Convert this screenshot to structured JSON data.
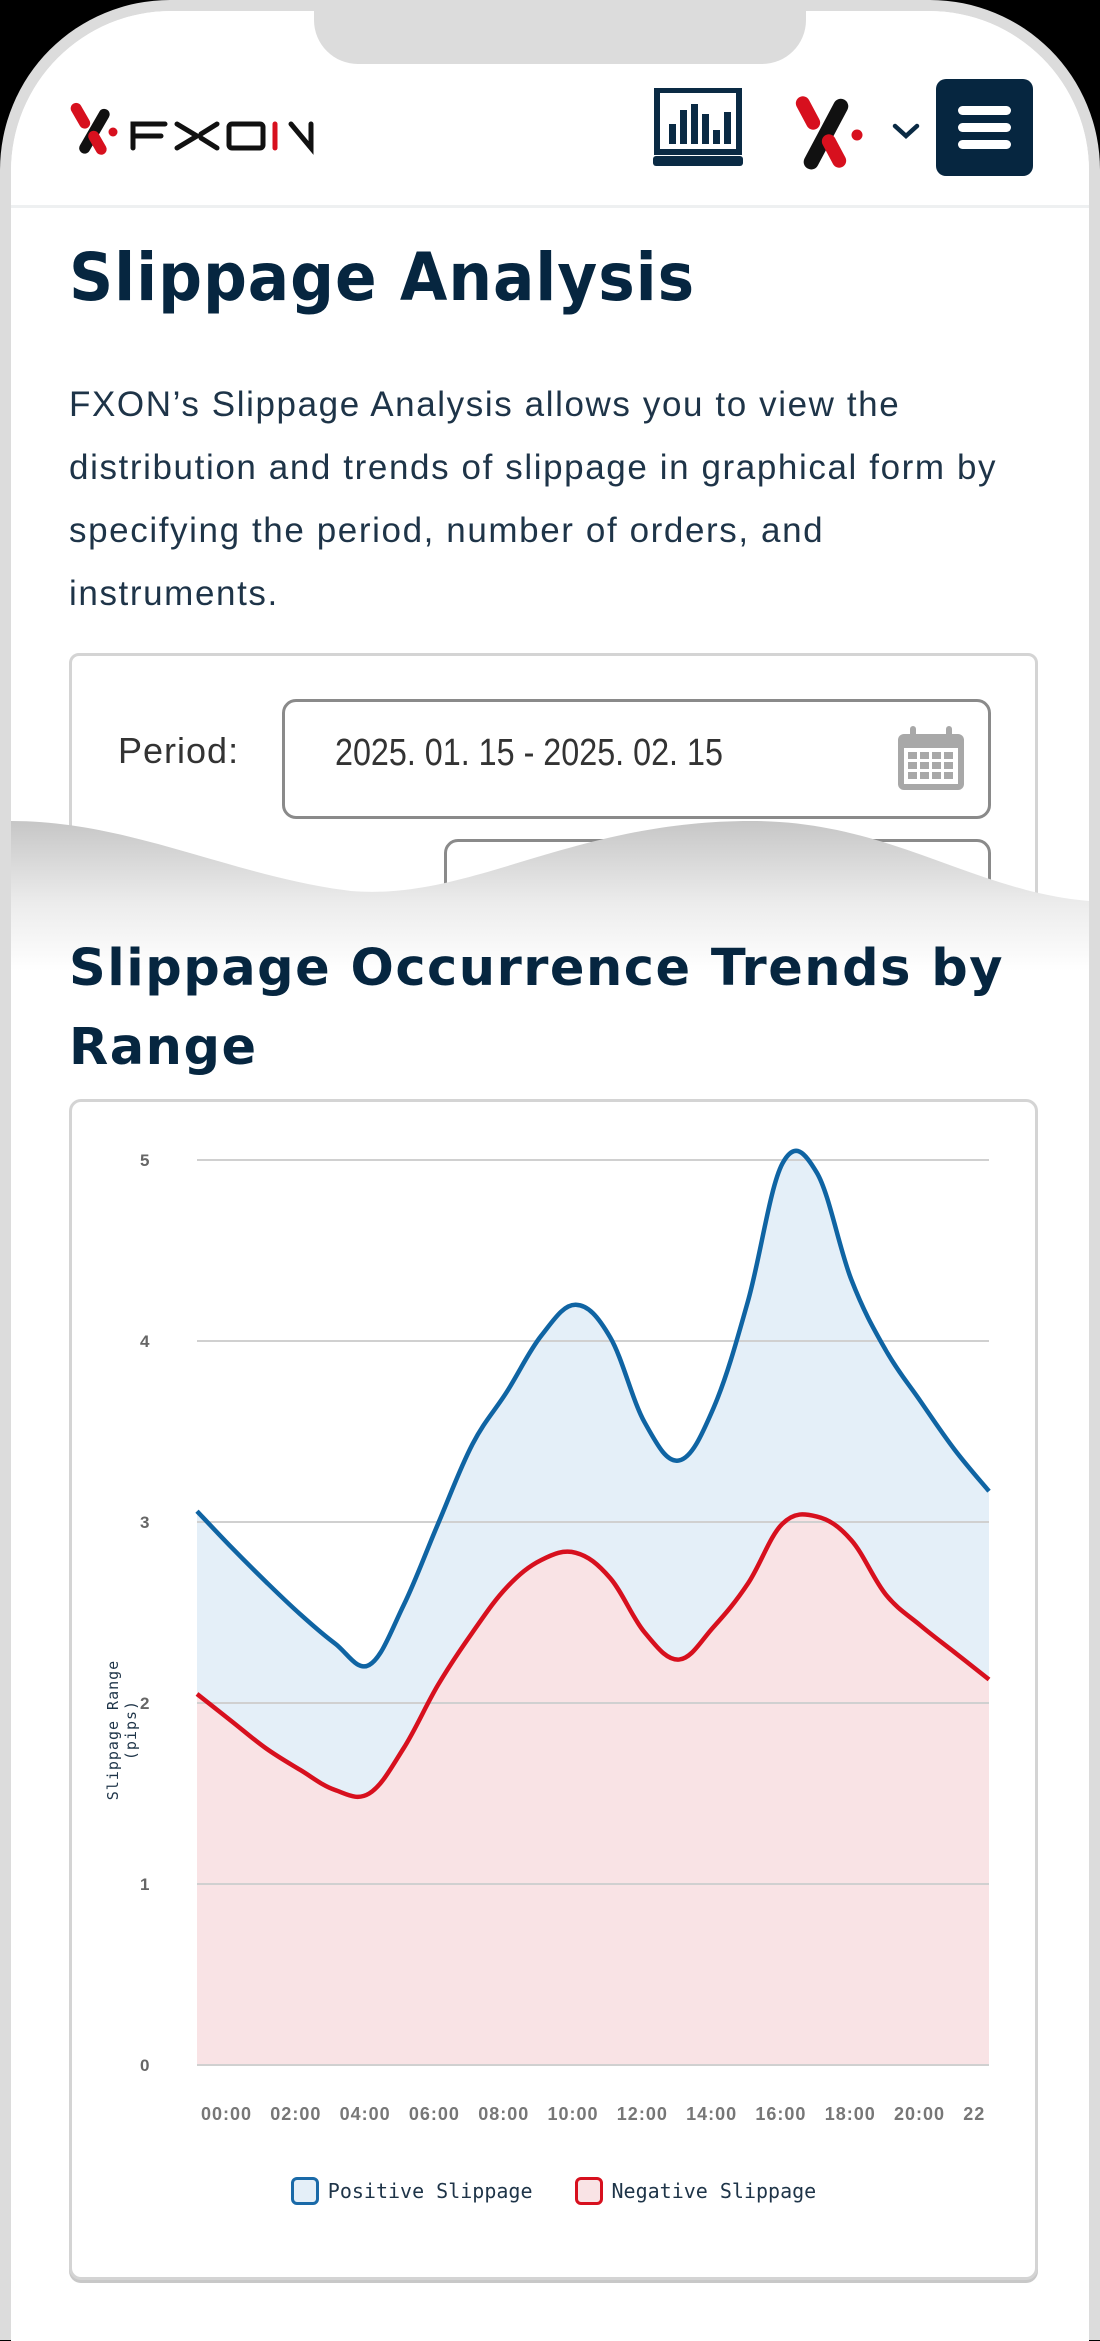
{
  "header": {
    "logo_text": "FXON",
    "icons": [
      "fxon-logo-icon",
      "chart-monitor-icon",
      "fxon-x-icon",
      "chevron-down-icon",
      "hamburger-menu-icon"
    ]
  },
  "page": {
    "title": "Slippage Analysis",
    "description": "FXON’s Slippage Analysis allows you to view the distribution and trends of slippage in graphical form by specifying the period, number of orders, and instruments."
  },
  "filters": {
    "period_label": "Period:",
    "period_value": "2025. 01. 15 - 2025. 02. 15",
    "calendar_icon": "calendar-icon"
  },
  "section": {
    "title": "Slippage Occurrence Trends by Range"
  },
  "colors": {
    "navy": "#062640",
    "positive_line": "#0f64a3",
    "positive_fill": "#e4eff8",
    "negative_line": "#d7101e",
    "negative_fill": "#f9e3e5",
    "grid": "#d0d0d0"
  },
  "chart_data": {
    "type": "area",
    "title": "Slippage Occurrence Trends by Range",
    "xlabel": "",
    "ylabel": "Slippage Range (pips)",
    "ylim": [
      0,
      5
    ],
    "yticks": [
      0,
      1,
      2,
      3,
      4,
      5
    ],
    "grid": true,
    "legend_position": "bottom",
    "x_tick_labels": [
      "00:00",
      "02:00",
      "04:00",
      "06:00",
      "08:00",
      "10:00",
      "12:00",
      "14:00",
      "16:00",
      "18:00",
      "20:00",
      "22"
    ],
    "x": [
      "00:00",
      "01:00",
      "02:00",
      "03:00",
      "04:00",
      "05:00",
      "06:00",
      "07:00",
      "08:00",
      "09:00",
      "10:00",
      "11:00",
      "12:00",
      "13:00",
      "14:00",
      "15:00",
      "16:00",
      "17:00",
      "18:00",
      "19:00",
      "20:00",
      "21:00",
      "22:00",
      "23:00"
    ],
    "series": [
      {
        "name": "Positive Slippage",
        "values": [
          3.06,
          2.86,
          2.67,
          2.49,
          2.33,
          2.21,
          2.54,
          2.99,
          3.43,
          3.72,
          4.03,
          4.2,
          4.02,
          3.55,
          3.34,
          3.63,
          4.22,
          4.98,
          4.93,
          4.34,
          3.95,
          3.67,
          3.4,
          3.17
        ]
      },
      {
        "name": "Negative Slippage",
        "values": [
          2.05,
          1.9,
          1.75,
          1.63,
          1.52,
          1.5,
          1.75,
          2.1,
          2.39,
          2.64,
          2.79,
          2.83,
          2.69,
          2.39,
          2.24,
          2.42,
          2.66,
          2.99,
          3.03,
          2.9,
          2.6,
          2.43,
          2.28,
          2.13
        ]
      }
    ]
  }
}
